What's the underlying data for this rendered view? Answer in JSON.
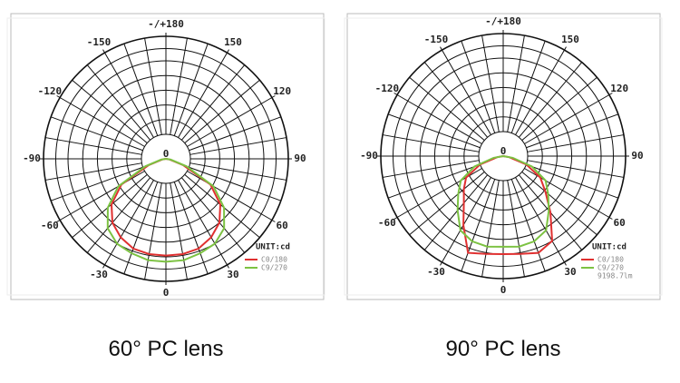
{
  "chart_data": [
    {
      "type": "polar",
      "caption": "60° PC lens",
      "unit_label": "UNIT:cd",
      "rlim": [
        0,
        1
      ],
      "thetaticks": [
        {
          "value": 180,
          "label": "-/+180"
        },
        150,
        120,
        90,
        60,
        30,
        0,
        -30,
        -60,
        -90,
        -120,
        -150
      ],
      "theta": [
        -90,
        -80,
        -70,
        -60,
        -50,
        -40,
        -30,
        -20,
        -10,
        0,
        10,
        20,
        30,
        40,
        50,
        60,
        70,
        80,
        90
      ],
      "series": [
        {
          "name": "C0/180",
          "color": "#e03030",
          "values": [
            0,
            0.03,
            0.15,
            0.42,
            0.58,
            0.68,
            0.74,
            0.78,
            0.79,
            0.79,
            0.79,
            0.78,
            0.74,
            0.68,
            0.58,
            0.42,
            0.15,
            0.03,
            0
          ]
        },
        {
          "name": "C9/270",
          "color": "#7cc242",
          "values": [
            0,
            0.04,
            0.18,
            0.45,
            0.62,
            0.74,
            0.8,
            0.82,
            0.84,
            0.84,
            0.84,
            0.82,
            0.8,
            0.74,
            0.62,
            0.45,
            0.18,
            0.04,
            0
          ]
        }
      ]
    },
    {
      "type": "polar",
      "caption": "90° PC lens",
      "unit_label": "UNIT:cd",
      "annotation": "9198.7lm",
      "rlim": [
        0,
        1
      ],
      "thetaticks": [
        {
          "value": 180,
          "label": "-/+180"
        },
        150,
        120,
        90,
        60,
        30,
        0,
        -30,
        -60,
        -90,
        -120,
        -150
      ],
      "theta": [
        -90,
        -80,
        -70,
        -60,
        -50,
        -40,
        -30,
        -20,
        -10,
        0,
        10,
        20,
        30,
        40,
        50,
        60,
        70,
        80,
        90
      ],
      "series": [
        {
          "name": "C0/180",
          "color": "#e03030",
          "values": [
            0,
            0.05,
            0.2,
            0.35,
            0.42,
            0.5,
            0.65,
            0.84,
            0.81,
            0.8,
            0.81,
            0.84,
            0.8,
            0.6,
            0.45,
            0.35,
            0.2,
            0.05,
            0
          ]
        },
        {
          "name": "C9/270",
          "color": "#7cc242",
          "values": [
            0,
            0.08,
            0.25,
            0.4,
            0.48,
            0.58,
            0.7,
            0.74,
            0.75,
            0.74,
            0.75,
            0.74,
            0.7,
            0.58,
            0.48,
            0.4,
            0.25,
            0.08,
            0
          ]
        }
      ]
    }
  ]
}
